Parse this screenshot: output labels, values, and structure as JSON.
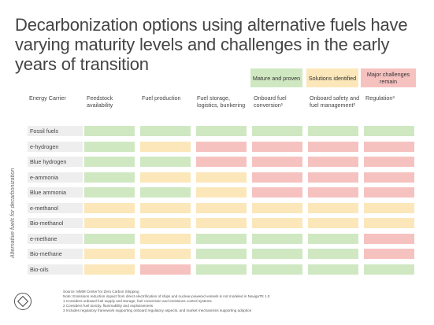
{
  "title": "Decarbonization options using alternative fuels have varying maturity levels and challenges in the early years of transition",
  "legend": {
    "green": "Mature and proven",
    "yellow": "Solutions identified",
    "red": "Major challenges remain"
  },
  "colors": {
    "green": "#cfe8c2",
    "yellow": "#fbe7b9",
    "red": "#f6c2c0",
    "label_bg": "#eeeeee"
  },
  "headers": [
    "Energy Carrier",
    "Feedstock availability",
    "Fuel production",
    "Fuel storage, logistics, bunkering",
    "Onboard fuel conversion¹",
    "Onboard safety and fuel management²",
    "Regulation³"
  ],
  "side_label": "Alternative fuels for decarbonization",
  "rows": [
    {
      "label": "Fossil fuels",
      "statuses": [
        "green",
        "green",
        "green",
        "green",
        "green",
        "green"
      ]
    },
    {
      "label": "e-hydrogen",
      "statuses": [
        "green",
        "yellow",
        "red",
        "red",
        "red",
        "red"
      ]
    },
    {
      "label": "Blue hydrogen",
      "statuses": [
        "green",
        "green",
        "red",
        "red",
        "red",
        "red"
      ]
    },
    {
      "label": "e-ammonia",
      "statuses": [
        "green",
        "yellow",
        "yellow",
        "red",
        "red",
        "red"
      ]
    },
    {
      "label": "Blue ammonia",
      "statuses": [
        "green",
        "green",
        "yellow",
        "red",
        "red",
        "red"
      ]
    },
    {
      "label": "e-methanol",
      "statuses": [
        "yellow",
        "yellow",
        "yellow",
        "yellow",
        "yellow",
        "yellow"
      ]
    },
    {
      "label": "Bio-methanol",
      "statuses": [
        "yellow",
        "yellow",
        "yellow",
        "yellow",
        "yellow",
        "yellow"
      ]
    },
    {
      "label": "e-methane",
      "statuses": [
        "green",
        "yellow",
        "green",
        "green",
        "green",
        "red"
      ]
    },
    {
      "label": "Bio-methane",
      "statuses": [
        "yellow",
        "yellow",
        "green",
        "green",
        "green",
        "red"
      ]
    },
    {
      "label": "Bio-oils",
      "statuses": [
        "yellow",
        "red",
        "green",
        "green",
        "green",
        "green"
      ]
    }
  ],
  "notes": [
    "Source: MMM Center for Zero Carbon Shipping",
    "Note: Emissions reduction impact from direct electrification of ships and nuclear-powered vessels is not modeled in NavigaTE 1.0",
    "1 Considers onboard fuel supply and storage, fuel conversion and emissions control systems",
    "2 Considers fuel toxicity, flammability and explosiveness",
    "3 Includes regulatory framework supporting onboard regulatory aspects, and market mechanisms supporting adoption"
  ]
}
